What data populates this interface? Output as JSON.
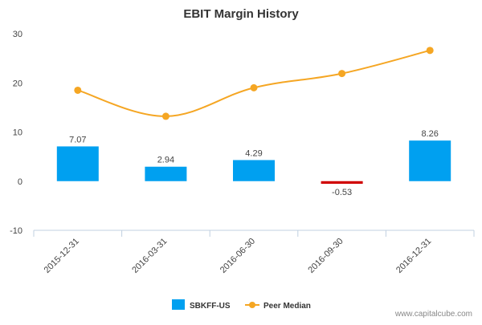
{
  "chart_data": {
    "type": "bar",
    "title": "EBIT Margin History",
    "categories": [
      "2015-12-31",
      "2016-03-31",
      "2016-06-30",
      "2016-09-30",
      "2016-12-31"
    ],
    "series": [
      {
        "name": "SBKFF-US",
        "type": "bar",
        "values": [
          7.07,
          2.94,
          4.29,
          -0.53,
          8.26
        ],
        "labels": [
          "7.07",
          "2.94",
          "4.29",
          "-0.53",
          "8.26"
        ],
        "color": "#00a0f0",
        "negative_color": "#d00000"
      },
      {
        "name": "Peer Median",
        "type": "line",
        "values": [
          18.5,
          13.2,
          19.0,
          21.9,
          26.6
        ],
        "color": "#f5a623"
      }
    ],
    "yticks": [
      -10,
      0,
      10,
      20,
      30
    ],
    "ylim": [
      -10,
      30
    ],
    "grid": false,
    "legend_position": "bottom-center"
  },
  "watermark": "www.capitalcube.com",
  "colors": {
    "title": "#333333",
    "axis": "#c0d0e0",
    "tick_text": "#444444"
  }
}
